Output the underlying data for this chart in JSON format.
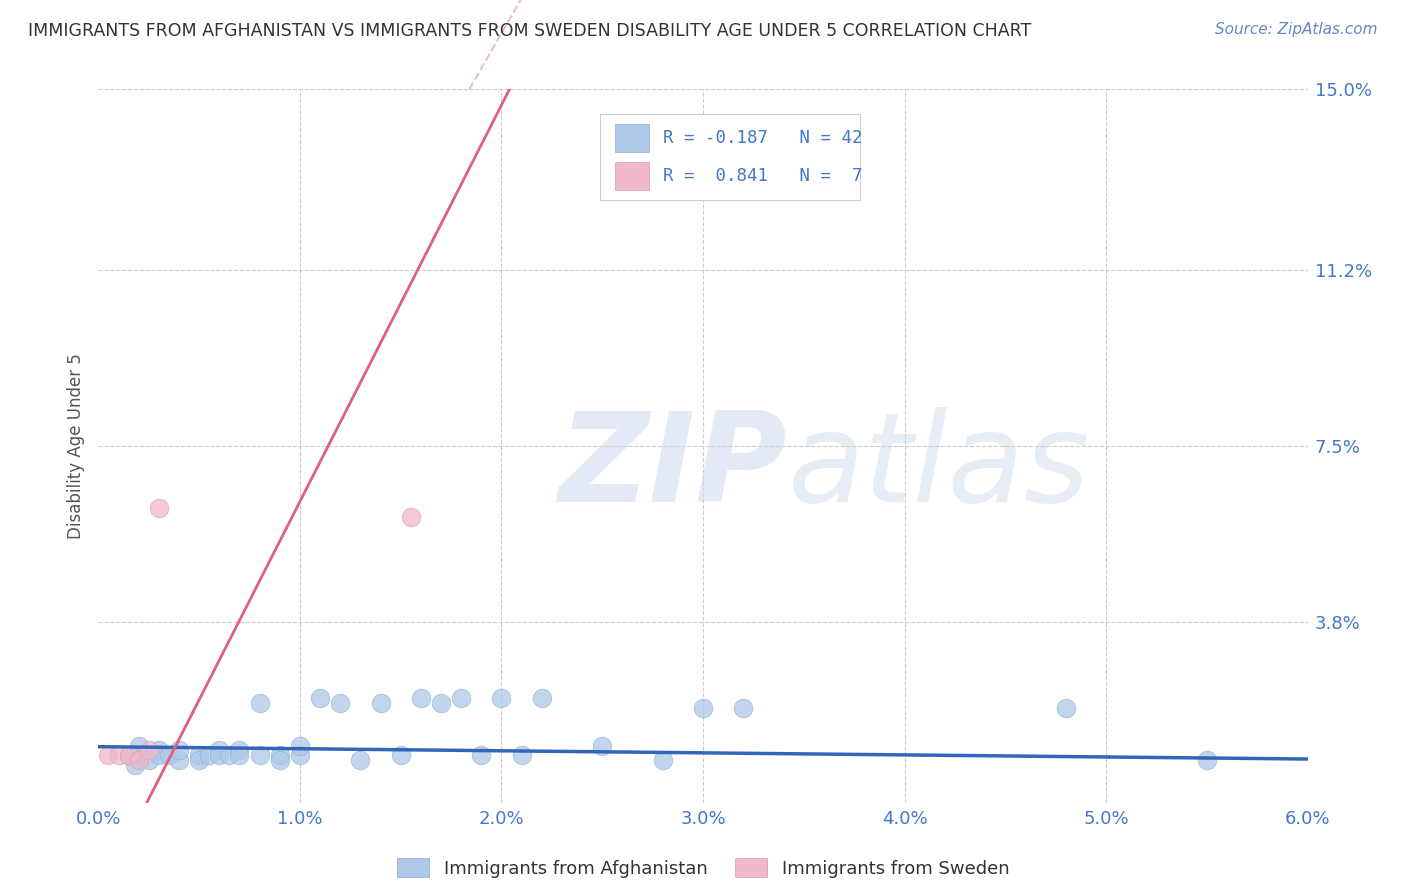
{
  "title": "IMMIGRANTS FROM AFGHANISTAN VS IMMIGRANTS FROM SWEDEN DISABILITY AGE UNDER 5 CORRELATION CHART",
  "source": "Source: ZipAtlas.com",
  "ylabel": "Disability Age Under 5",
  "watermark_zip": "ZIP",
  "watermark_atlas": "atlas",
  "xlim": [
    0.0,
    0.06
  ],
  "ylim": [
    0.0,
    0.15
  ],
  "yticks": [
    0.038,
    0.075,
    0.112,
    0.15
  ],
  "ytick_labels": [
    "3.8%",
    "7.5%",
    "11.2%",
    "15.0%"
  ],
  "xticks": [
    0.0,
    0.01,
    0.02,
    0.03,
    0.04,
    0.05,
    0.06
  ],
  "xtick_labels": [
    "0.0%",
    "1.0%",
    "2.0%",
    "3.0%",
    "4.0%",
    "5.0%",
    "6.0%"
  ],
  "afghanistan_color": "#adc8e8",
  "sweden_color": "#f0b8c8",
  "trend_afghanistan_color": "#3366bb",
  "trend_sweden_color": "#e06080",
  "trend_dashed_color": "#e8c0cc",
  "legend_R_afghanistan": "-0.187",
  "legend_N_afghanistan": "42",
  "legend_R_sweden": "0.841",
  "legend_N_sweden": "7",
  "afghanistan_x": [
    0.0015,
    0.0018,
    0.002,
    0.002,
    0.0025,
    0.003,
    0.003,
    0.0035,
    0.004,
    0.004,
    0.005,
    0.005,
    0.0055,
    0.006,
    0.006,
    0.0065,
    0.007,
    0.007,
    0.008,
    0.008,
    0.009,
    0.009,
    0.01,
    0.01,
    0.011,
    0.012,
    0.013,
    0.014,
    0.015,
    0.016,
    0.017,
    0.018,
    0.019,
    0.02,
    0.021,
    0.022,
    0.025,
    0.028,
    0.03,
    0.032,
    0.048,
    0.055
  ],
  "afghanistan_y": [
    0.01,
    0.008,
    0.01,
    0.012,
    0.009,
    0.011,
    0.01,
    0.01,
    0.009,
    0.011,
    0.01,
    0.009,
    0.01,
    0.011,
    0.01,
    0.01,
    0.011,
    0.01,
    0.021,
    0.01,
    0.01,
    0.009,
    0.01,
    0.012,
    0.022,
    0.021,
    0.009,
    0.021,
    0.01,
    0.022,
    0.021,
    0.022,
    0.01,
    0.022,
    0.01,
    0.022,
    0.012,
    0.009,
    0.02,
    0.02,
    0.02,
    0.009
  ],
  "sweden_x": [
    0.0005,
    0.001,
    0.0015,
    0.002,
    0.0025,
    0.003,
    0.0155
  ],
  "sweden_y": [
    0.01,
    0.01,
    0.01,
    0.009,
    0.011,
    0.062,
    0.06
  ],
  "background_color": "#ffffff",
  "grid_color": "#cccccc",
  "title_color": "#333333",
  "axis_label_color": "#555555",
  "tick_color": "#4477cc",
  "legend_text_color": "#333333",
  "legend_value_color": "#4477cc",
  "source_color": "#6688bb"
}
